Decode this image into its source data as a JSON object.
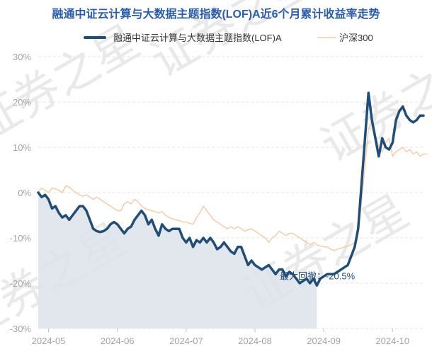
{
  "chart_data": {
    "type": "line",
    "title": "融通中证云计算与大数据主题指数(LOF)A近6个月累计收益率走势",
    "watermark": "证券之星",
    "ylim": [
      -30,
      30
    ],
    "y_ticks": [
      30,
      20,
      10,
      0,
      -10,
      -20,
      -30
    ],
    "y_tick_labels": [
      "30%",
      "20%",
      "10%",
      "0%",
      "-10%",
      "-20%",
      "-30%"
    ],
    "x_ticks": [
      "2024-05",
      "2024-06",
      "2024-07",
      "2024-08",
      "2024-09",
      "2024-10"
    ],
    "x_tick_index": [
      3,
      23,
      43,
      63,
      83,
      103
    ],
    "grid": true,
    "legend_placement": "top",
    "annotation": "最大回撤：-20.5%",
    "annotation_index": 90,
    "colors": {
      "fund": "#1f4e79",
      "index": "#f5c9a1",
      "drawdown": "#dde3ea"
    },
    "series": [
      {
        "name": "融通中证云计算与大数据主题指数(LOF)A",
        "values": [
          0,
          -1,
          -0.5,
          -1.5,
          -3.5,
          -3,
          -4.5,
          -5.5,
          -5,
          -6,
          -5,
          -4,
          -3,
          -3,
          -4,
          -6,
          -8,
          -8.5,
          -8.7,
          -8.5,
          -8,
          -7,
          -6.5,
          -7,
          -8,
          -9,
          -8,
          -7.5,
          -6,
          -5,
          -4,
          -5,
          -7,
          -6,
          -8,
          -9.5,
          -7,
          -8,
          -8.5,
          -8,
          -8,
          -8,
          -10,
          -11,
          -10,
          -12,
          -10.5,
          -11,
          -10,
          -11,
          -10,
          -11,
          -12.5,
          -12,
          -11,
          -12,
          -13,
          -13.5,
          -12,
          -12,
          -14,
          -16,
          -15,
          -16,
          -16.5,
          -17,
          -16.5,
          -16,
          -17,
          -18,
          -17,
          -17,
          -18.5,
          -17.5,
          -18,
          -19,
          -20,
          -19.5,
          -19,
          -20,
          -19,
          -20.5,
          -19,
          -18.5,
          -18,
          -18,
          -18,
          -17.5,
          -17,
          -16.5,
          -16,
          -14,
          -12,
          -8,
          2,
          12,
          22,
          16,
          12,
          8,
          12,
          10,
          9.5,
          11,
          16,
          18,
          19,
          17,
          16,
          15.5,
          16,
          17,
          17
        ]
      },
      {
        "name": "沪深300",
        "values": [
          0,
          1,
          0.5,
          0,
          1,
          0.8,
          0.5,
          0,
          1.5,
          1.2,
          0.5,
          0,
          -0.5,
          -0.8,
          -0.5,
          -1,
          -1.5,
          -1,
          -1.5,
          -2,
          -2.5,
          -3,
          -3.5,
          -4,
          -4,
          -2.5,
          -2,
          -2.5,
          -1.5,
          -2,
          -3,
          -3.5,
          -3.8,
          -4,
          -4.2,
          -4.5,
          -4.2,
          -5,
          -5.5,
          -5.8,
          -6,
          -6.2,
          -6.5,
          -6.5,
          -6.8,
          -7,
          -5.5,
          -4.5,
          -3,
          -4,
          -5,
          -6,
          -6.5,
          -7,
          -7.5,
          -8,
          -7.5,
          -8,
          -7.5,
          -8,
          -8.5,
          -8.2,
          -8,
          -8.5,
          -9,
          -9.5,
          -10,
          -11,
          -10,
          -9.5,
          -8.5,
          -9,
          -9.5,
          -9,
          -9,
          -9.5,
          -10,
          -10.5,
          -11,
          -11.5,
          -11,
          -11.5,
          -11.8,
          -12,
          -12,
          -12.5,
          -12.8,
          -12.5,
          -12.3,
          -12,
          -11.8,
          -11.5,
          -11,
          -9,
          -2,
          6,
          14,
          16,
          13,
          10,
          9,
          11,
          12,
          8,
          9,
          9.5,
          10,
          9,
          9.5,
          8.5,
          9,
          8,
          8.5,
          8.5
        ]
      }
    ]
  }
}
